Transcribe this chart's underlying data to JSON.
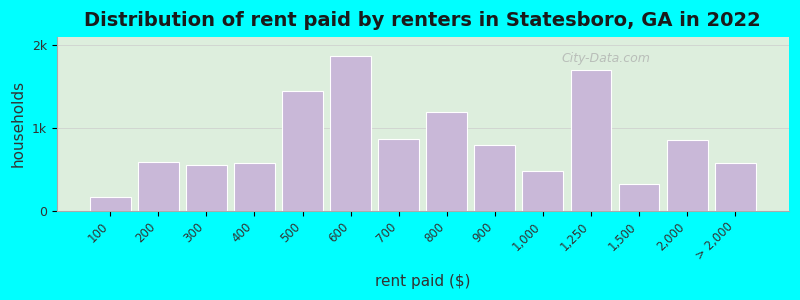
{
  "title": "Distribution of rent paid by renters in Statesboro, GA in 2022",
  "xlabel": "rent paid ($)",
  "ylabel": "households",
  "background_outer": "#00FFFF",
  "bar_color": "#C9B8D8",
  "bar_edge_color": "#FFFFFF",
  "categories": [
    "100",
    "200",
    "300",
    "400",
    "500",
    "600",
    "700",
    "800",
    "900",
    "1,000",
    "1,250",
    "1,500",
    "2,000",
    "> 2,000"
  ],
  "values": [
    170,
    590,
    550,
    580,
    1450,
    1870,
    870,
    1200,
    800,
    480,
    1700,
    320,
    850,
    580
  ],
  "ylim": [
    0,
    2100
  ],
  "yticks": [
    0,
    1000,
    2000
  ],
  "ytick_labels": [
    "0",
    "1k",
    "2k"
  ],
  "plot_bg_left": "#d4e8c2",
  "plot_bg_right": "#f0ecf8",
  "watermark_text": "City-Data.com",
  "title_fontsize": 14,
  "axis_label_fontsize": 11
}
